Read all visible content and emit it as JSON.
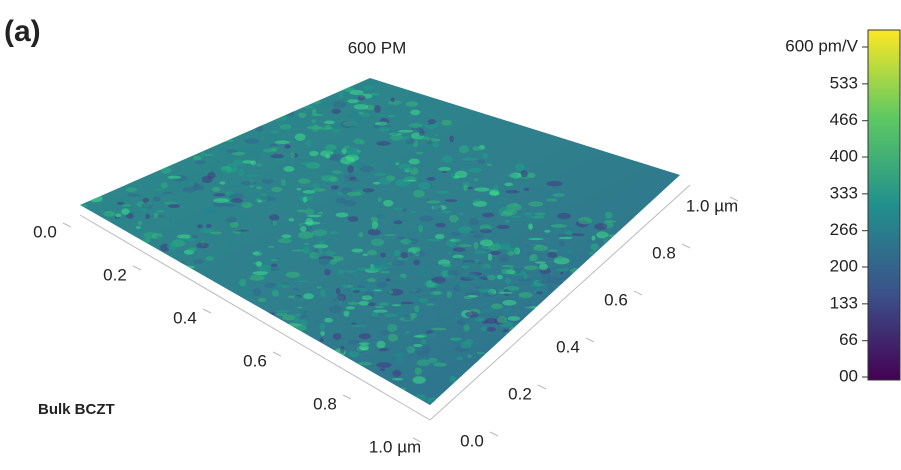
{
  "chart_data": {
    "type": "surface",
    "panel_label": "(a)",
    "title": "600 PM",
    "annotation": "Bulk BCZT",
    "xticks": [
      {
        "value": 0,
        "label": "0.0"
      },
      0.2,
      0.4,
      0.6,
      0.8,
      {
        "value": 1,
        "label": "1.0 µm"
      }
    ],
    "xlim": [
      0,
      1
    ],
    "yticks": [
      {
        "value": 0,
        "label": "0.0"
      },
      0.2,
      0.4,
      0.6,
      0.8,
      {
        "value": 1,
        "label": "1.0 µm"
      }
    ],
    "ylim": [
      0,
      1
    ],
    "colorbar": {
      "lim": [
        0,
        600
      ],
      "ticks": [
        {
          "value": 600,
          "label": "600 pm/V"
        },
        533,
        466,
        400,
        333,
        266,
        200,
        133,
        66,
        {
          "value": 0,
          "label": "00"
        }
      ],
      "colors": [
        "#440154",
        "#3b528b",
        "#21908d",
        "#5dc962",
        "#fde725"
      ]
    }
  }
}
